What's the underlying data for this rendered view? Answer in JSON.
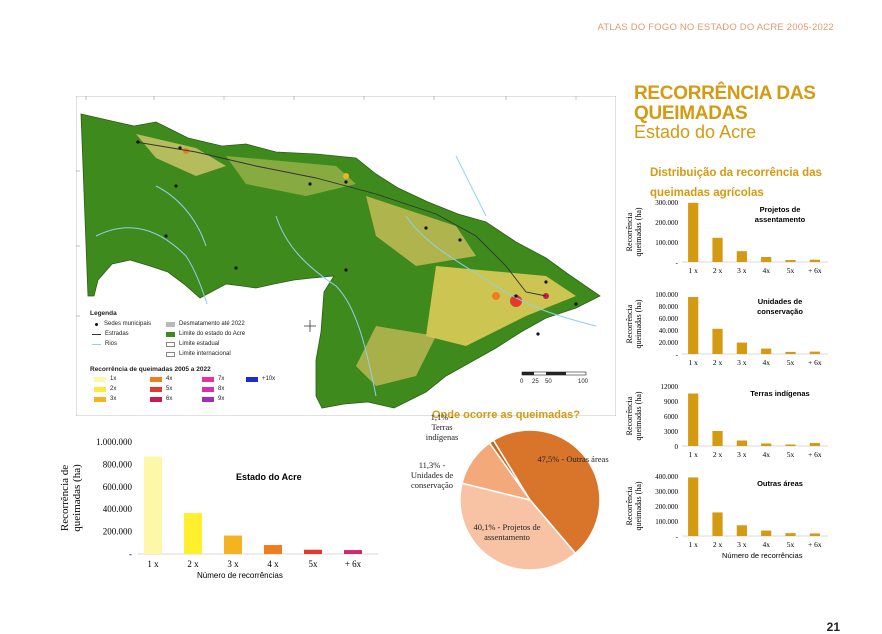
{
  "header": "ATLAS DO FOGO NO ESTADO DO ACRE 2005-2022",
  "title": {
    "line1": "RECORRÊNCIA DAS",
    "line2": "QUEIMADAS",
    "line3": "Estado do Acre"
  },
  "subtitle": "Distribuição da recorrência das queimadas agrícolas",
  "legend": {
    "title": "Legenda",
    "items": [
      {
        "label": "Sedes municipais"
      },
      {
        "label": "Estradas"
      },
      {
        "label": "Rios"
      },
      {
        "label": "Desmatamento até 2022",
        "color": "#b9b9b9"
      },
      {
        "label": "Limite do estado do Acre",
        "color": "#3f8a1d"
      },
      {
        "label": "Limite estadual"
      },
      {
        "label": "Limite internacional"
      }
    ],
    "recurrence_title": "Recorrência de queimadas 2005 a 2022",
    "classes": [
      {
        "label": "1x",
        "color": "#fdf7a8"
      },
      {
        "label": "2x",
        "color": "#ffe93a"
      },
      {
        "label": "3x",
        "color": "#f4b422"
      },
      {
        "label": "4x",
        "color": "#f07d1e"
      },
      {
        "label": "5x",
        "color": "#e13b2b"
      },
      {
        "label": "6x",
        "color": "#c81c50"
      },
      {
        "label": "7x",
        "color": "#e8319a"
      },
      {
        "label": "8x",
        "color": "#d82fb0"
      },
      {
        "label": "9x",
        "color": "#a62bb6"
      },
      {
        "label": "+10x",
        "color": "#1d2bd4"
      }
    ]
  },
  "scalebar": {
    "labels": [
      "0",
      "25",
      "50",
      "100"
    ]
  },
  "chart_data": [
    {
      "type": "bar",
      "title": "Estado do Acre",
      "ylabel": "Recorrência de queimadas (ha)",
      "xlabel": "Número de recorrências",
      "categories": [
        "1 x",
        "2 x",
        "3 x",
        "4 x",
        "5x",
        "+ 6x"
      ],
      "values": [
        870000,
        365000,
        165000,
        80000,
        38000,
        35000
      ],
      "yticks": [
        "-",
        "200.000",
        "400.000",
        "600.000",
        "800.000",
        "1.000.000"
      ],
      "ylim": [
        0,
        1000000
      ],
      "colors": [
        "#fdf7a8",
        "#ffef2e",
        "#f4b422",
        "#f07d1e",
        "#e33a2c",
        "#d2276a"
      ]
    },
    {
      "type": "pie",
      "title": "Onde ocorre as queimadas?",
      "slices": [
        {
          "label": "47,5% - Outras áreas",
          "value": 47.5,
          "color": "#d9752a"
        },
        {
          "label": "40,1% - Projetos de assentamento",
          "value": 40.1,
          "color": "#f8c3a5"
        },
        {
          "label": "11,3% - Unidades de conservação",
          "value": 11.3,
          "color": "#f3a97a"
        },
        {
          "label": "1,1% - Terras indígenas",
          "value": 1.1,
          "color": "#c8681c"
        }
      ]
    },
    {
      "type": "bar",
      "title": "Projetos de assentamento",
      "ylabel": "Recorrência queimadas (ha)",
      "categories": [
        "1 x",
        "2 x",
        "3 x",
        "4x",
        "5x",
        "+ 6x"
      ],
      "values": [
        355000,
        145000,
        65000,
        30000,
        12000,
        14000
      ],
      "yticks": [
        "-",
        "100.000",
        "200.000",
        "300.000"
      ],
      "ylim": [
        0,
        360000
      ],
      "color": "#d49a12"
    },
    {
      "type": "bar",
      "title": "Unidades de conservação",
      "ylabel": "Recorrência queimadas (ha)",
      "categories": [
        "1 x",
        "2 x",
        "3 x",
        "4x",
        "5x",
        "+ 6x"
      ],
      "values": [
        95000,
        42000,
        19000,
        9000,
        3500,
        4000
      ],
      "yticks": [
        "-",
        "20.000",
        "40.000",
        "60.000",
        "80.000",
        "100.000"
      ],
      "ylim": [
        0,
        100000
      ],
      "color": "#d49a12"
    },
    {
      "type": "bar",
      "title": "Terras indígenas",
      "ylabel": "Recorrência queimadas (ha)",
      "categories": [
        "1 x",
        "2 x",
        "3 x",
        "4x",
        "5x",
        "+ 6x"
      ],
      "values": [
        10500,
        3000,
        1100,
        500,
        300,
        600
      ],
      "yticks": [
        "0",
        "3000",
        "6000",
        "9000",
        "12000"
      ],
      "ylim": [
        0,
        12000
      ],
      "color": "#d49a12"
    },
    {
      "type": "bar",
      "title": "Outras áreas",
      "ylabel": "Recorrência queimadas (ha)",
      "xlabel": "Número de recorrências",
      "categories": [
        "1 x",
        "2 x",
        "3 x",
        "4x",
        "5x",
        "+ 6x"
      ],
      "values": [
        410000,
        165000,
        75000,
        38000,
        20000,
        18000
      ],
      "yticks": [
        "-",
        "100.000",
        "200.000",
        "300.000",
        "400.000"
      ],
      "ylim": [
        0,
        420000
      ],
      "color": "#d49a12"
    }
  ],
  "page_number": "21"
}
